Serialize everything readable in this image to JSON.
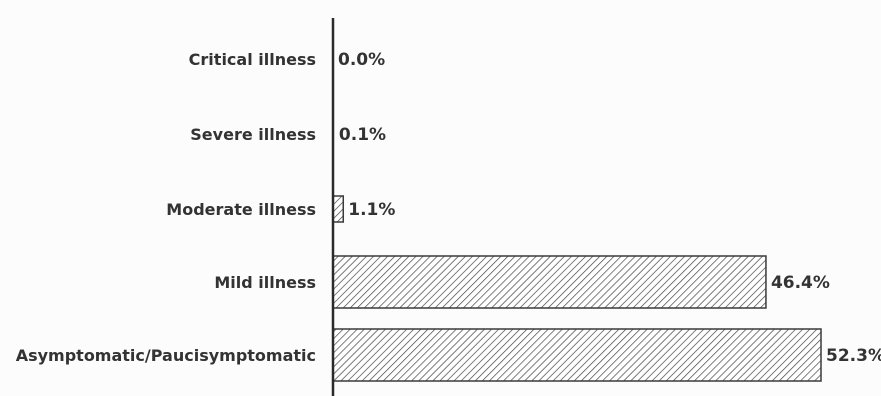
{
  "chart_data": {
    "type": "bar",
    "orientation": "horizontal",
    "title": "",
    "xlabel": "",
    "ylabel": "",
    "categories": [
      "Critical illness",
      "Severe illness",
      "Moderate illness",
      "Mild illness",
      "Asymptomatic/Paucisymptomatic"
    ],
    "values": [
      0.0,
      0.1,
      1.1,
      46.4,
      52.3
    ],
    "value_labels": [
      "0.0%",
      "0.1%",
      "1.1%",
      "46.4%",
      "52.3%"
    ],
    "xlim": [
      0,
      52.3
    ],
    "grid": false,
    "legend": "none",
    "colors": {
      "bar_fill": "#ffffff",
      "hatch": "#444444",
      "bar_stroke": "#3a3a3a",
      "axis": "#2a2a2a",
      "text": "#333333"
    }
  }
}
